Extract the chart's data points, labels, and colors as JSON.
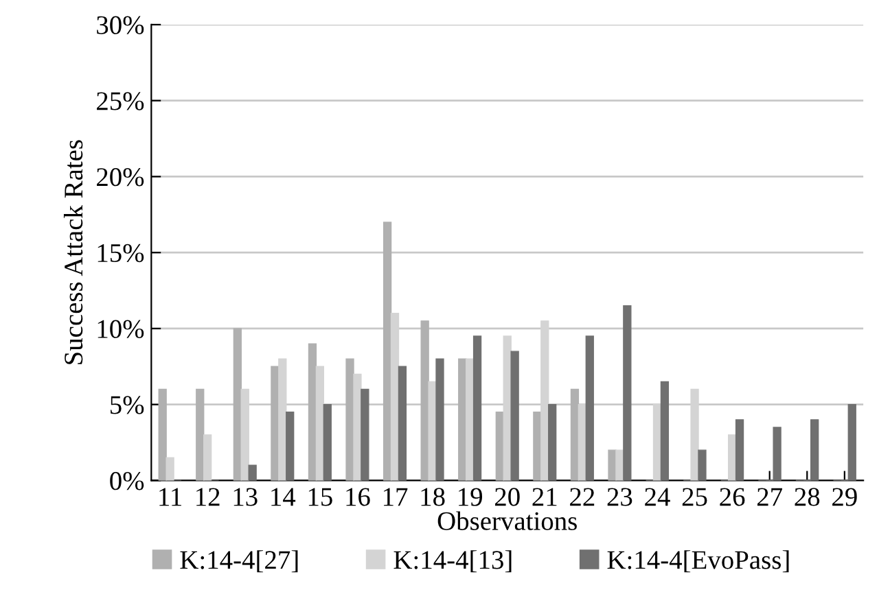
{
  "chart_data": {
    "type": "bar",
    "xlabel": "Observations",
    "ylabel": "Success Attack Rates",
    "categories": [
      "11",
      "12",
      "13",
      "14",
      "15",
      "16",
      "17",
      "18",
      "19",
      "20",
      "21",
      "22",
      "23",
      "24",
      "25",
      "26",
      "27",
      "28",
      "29"
    ],
    "series": [
      {
        "name": "K:14-4[27]",
        "color": "#b0b0b0",
        "values": [
          6,
          6,
          10,
          7.5,
          9,
          8,
          17,
          10.5,
          8,
          4.5,
          4.5,
          6,
          2,
          0,
          0,
          0,
          0,
          0,
          0
        ]
      },
      {
        "name": "K:14-4[13]",
        "color": "#d4d4d4",
        "values": [
          1.5,
          3,
          6,
          8,
          7.5,
          7,
          11,
          6.5,
          8,
          9.5,
          10.5,
          5,
          2,
          5,
          6,
          3,
          0,
          0,
          0
        ]
      },
      {
        "name": "K:14-4[EvoPass]",
        "color": "#707070",
        "values": [
          0,
          0,
          1,
          4.5,
          5,
          6,
          7.5,
          8,
          9.5,
          8.5,
          5,
          9.5,
          11.5,
          6.5,
          2,
          4,
          3.5,
          4,
          5
        ]
      }
    ],
    "ylim": [
      0,
      30
    ],
    "yticks": [
      {
        "value": 0,
        "label": "0%"
      },
      {
        "value": 5,
        "label": "5%"
      },
      {
        "value": 10,
        "label": "10%"
      },
      {
        "value": 15,
        "label": "15%"
      },
      {
        "value": 20,
        "label": "20%"
      },
      {
        "value": 25,
        "label": "25%"
      },
      {
        "value": 30,
        "label": "30%"
      }
    ],
    "grid": "y",
    "legend": "bottom"
  }
}
